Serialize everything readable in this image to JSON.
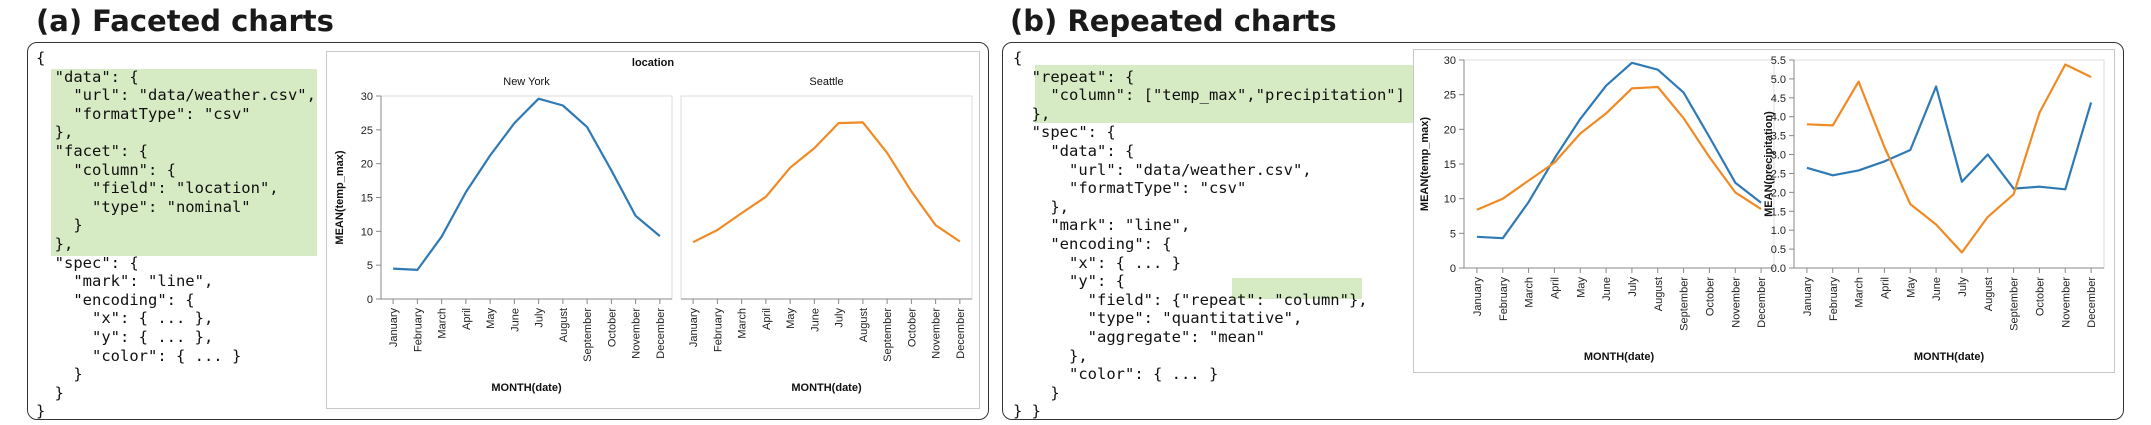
{
  "left": {
    "heading": "(a) Faceted charts",
    "code": [
      "{",
      "  \"data\": {",
      "    \"url\": \"data/weather.csv\",",
      "    \"formatType\": \"csv\"",
      "  },",
      "  \"facet\": {",
      "    \"column\": {",
      "      \"field\": \"location\",",
      "      \"type\": \"nominal\"",
      "    }",
      "  },",
      "  \"spec\": {",
      "    \"mark\": \"line\",",
      "    \"encoding\": {",
      "      \"x\": { ... },",
      "      \"y\": { ... },",
      "      \"color\": { ... }",
      "    }",
      "  }",
      "}"
    ]
  },
  "right": {
    "heading": "(b) Repeated charts",
    "code": [
      "{",
      "  \"repeat\": {",
      "    \"column\": [\"temp_max\",\"precipitation\"]",
      "  },",
      "  \"spec\": {",
      "    \"data\": {",
      "      \"url\": \"data/weather.csv\",",
      "      \"formatType\": \"csv\"",
      "    },",
      "    \"mark\": \"line\",",
      "    \"encoding\": {",
      "      \"x\": { ... }",
      "      \"y\": {",
      "        \"field\": {\"repeat\": \"column\"},",
      "        \"type\": \"quantitative\",",
      "        \"aggregate\": \"mean\"",
      "      },",
      "      \"color\": { ... }",
      "    }",
      "} }"
    ]
  },
  "colors": {
    "blue": "#2f7ab5",
    "orange": "#f08a24",
    "highlight": "#cfe6b8"
  },
  "chart_data": [
    {
      "type": "line",
      "title": "location",
      "facets": [
        "New York",
        "Seattle"
      ],
      "xlabel": "MONTH(date)",
      "ylabel": "MEAN(temp_max)",
      "categories": [
        "January",
        "February",
        "March",
        "April",
        "May",
        "June",
        "July",
        "August",
        "September",
        "October",
        "November",
        "December"
      ],
      "ylim": [
        0,
        30
      ],
      "yticks": [
        0,
        5,
        10,
        15,
        20,
        25,
        30
      ],
      "series": [
        {
          "facet": "New York",
          "color": "blue",
          "values": [
            4.5,
            4.3,
            9.2,
            15.8,
            21.2,
            26.0,
            29.6,
            28.6,
            25.4,
            19.0,
            12.3,
            9.3
          ]
        },
        {
          "facet": "Seattle",
          "color": "orange",
          "values": [
            8.4,
            10.2,
            12.7,
            15.1,
            19.4,
            22.3,
            26.0,
            26.1,
            21.6,
            15.9,
            10.9,
            8.5
          ]
        }
      ]
    },
    {
      "type": "line",
      "xlabel": "MONTH(date)",
      "ylabel": "MEAN(temp_max)",
      "categories": [
        "January",
        "February",
        "March",
        "April",
        "May",
        "June",
        "July",
        "August",
        "September",
        "October",
        "November",
        "December"
      ],
      "ylim": [
        0,
        30
      ],
      "yticks": [
        0,
        5,
        10,
        15,
        20,
        25,
        30
      ],
      "series": [
        {
          "color": "blue",
          "values": [
            4.5,
            4.3,
            9.5,
            15.8,
            21.5,
            26.3,
            29.6,
            28.6,
            25.3,
            18.9,
            12.3,
            9.4
          ]
        },
        {
          "color": "orange",
          "values": [
            8.4,
            10.0,
            12.6,
            15.2,
            19.4,
            22.3,
            25.9,
            26.1,
            21.6,
            16.0,
            10.9,
            8.5
          ]
        }
      ]
    },
    {
      "type": "line",
      "xlabel": "MONTH(date)",
      "ylabel": "MEAN(precipitation)",
      "categories": [
        "January",
        "February",
        "March",
        "April",
        "May",
        "June",
        "July",
        "August",
        "September",
        "October",
        "November",
        "December"
      ],
      "ylim": [
        0,
        5.5
      ],
      "yticks": [
        0.0,
        0.5,
        1.0,
        1.5,
        2.0,
        2.5,
        3.0,
        3.5,
        4.0,
        4.5,
        5.0,
        5.5
      ],
      "series": [
        {
          "color": "blue",
          "values": [
            2.65,
            2.45,
            2.58,
            2.82,
            3.12,
            4.8,
            2.28,
            3.0,
            2.1,
            2.15,
            2.08,
            4.38
          ]
        },
        {
          "color": "orange",
          "values": [
            3.8,
            3.77,
            4.93,
            3.2,
            1.69,
            1.15,
            0.41,
            1.35,
            1.95,
            4.1,
            5.38,
            5.05
          ]
        }
      ]
    }
  ]
}
